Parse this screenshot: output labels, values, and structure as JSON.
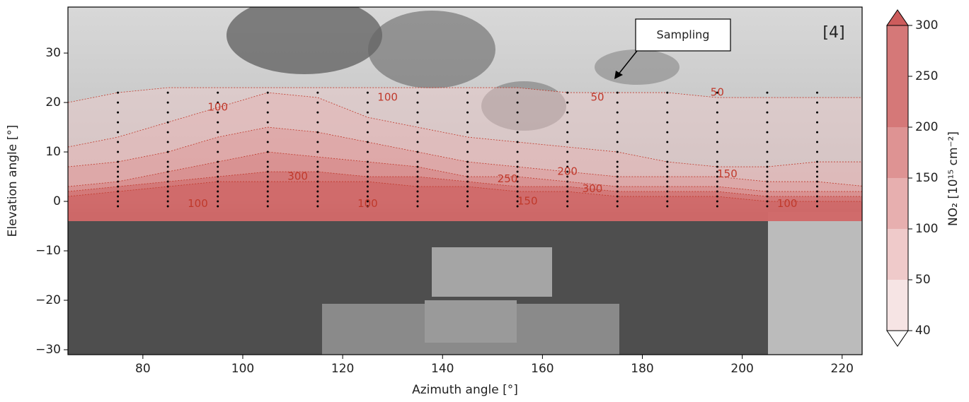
{
  "chart_data": {
    "type": "contour",
    "xlabel": "Azimuth angle [°]",
    "ylabel": "Elevation angle [°]",
    "panel_label": "[4]",
    "annotation": "Sampling",
    "xlim": [
      65,
      224
    ],
    "ylim": [
      -31,
      39.3
    ],
    "xticks": [
      80,
      100,
      120,
      140,
      160,
      180,
      200,
      220
    ],
    "yticks": [
      {
        "value": -30,
        "label": "−30"
      },
      {
        "value": -20,
        "label": "−20"
      },
      {
        "value": -10,
        "label": "−10"
      },
      0,
      10,
      20,
      30
    ],
    "colorbar": {
      "label": "NO₂ [10¹⁵ cm⁻²]",
      "levels": [
        40,
        50,
        100,
        150,
        200,
        250,
        300
      ],
      "colors": [
        "#ffffff",
        "#f6e4e4",
        "#efcaca",
        "#e7afaf",
        "#de9393",
        "#d57878",
        "#cc5c5c"
      ],
      "extend": "both"
    },
    "contour_azimuths": [
      65,
      75,
      85,
      95,
      105,
      115,
      125,
      135,
      145,
      155,
      165,
      175,
      185,
      195,
      205,
      215,
      225
    ],
    "contour_floor": -4,
    "contours": [
      {
        "level": 50,
        "boundary": [
          20,
          22,
          23,
          23,
          23,
          23,
          23,
          23,
          23,
          23,
          22,
          22,
          22,
          21,
          21,
          21,
          21
        ]
      },
      {
        "level": 100,
        "boundary": [
          11,
          13,
          16,
          19,
          22,
          21,
          17,
          15,
          13,
          12,
          11,
          10,
          8,
          7,
          7,
          8,
          8
        ]
      },
      {
        "level": 150,
        "boundary": [
          7,
          8,
          10,
          13,
          15,
          14,
          12,
          10,
          8,
          7,
          6,
          5,
          5,
          5,
          4,
          4,
          3
        ]
      },
      {
        "level": 200,
        "boundary": [
          3,
          4,
          6,
          8,
          10,
          9,
          8,
          7,
          5,
          5,
          4,
          3,
          3,
          3,
          2,
          2,
          2
        ]
      },
      {
        "level": 250,
        "boundary": [
          2,
          3,
          4,
          5,
          6,
          6,
          5,
          5,
          4,
          3,
          3,
          2,
          2,
          2,
          1,
          1,
          1
        ]
      },
      {
        "level": 300,
        "boundary": [
          1,
          2,
          3,
          4,
          4,
          4,
          4,
          3,
          3,
          2,
          2,
          1,
          1,
          1,
          0,
          0,
          0
        ]
      }
    ],
    "contour_labels": [
      {
        "value": 100,
        "azimuth": 95,
        "elevation": 19
      },
      {
        "value": 100,
        "azimuth": 129,
        "elevation": 21
      },
      {
        "value": 50,
        "azimuth": 171,
        "elevation": 21
      },
      {
        "value": 50,
        "azimuth": 195,
        "elevation": 22
      },
      {
        "value": 300,
        "azimuth": 111,
        "elevation": 5
      },
      {
        "value": 250,
        "azimuth": 153,
        "elevation": 4.5
      },
      {
        "value": 200,
        "azimuth": 165,
        "elevation": 6
      },
      {
        "value": 150,
        "azimuth": 197,
        "elevation": 5.5
      },
      {
        "value": 300,
        "azimuth": 170,
        "elevation": 2.5
      },
      {
        "value": 100,
        "azimuth": 91,
        "elevation": -0.5
      },
      {
        "value": 100,
        "azimuth": 125,
        "elevation": -0.5
      },
      {
        "value": 150,
        "azimuth": 157,
        "elevation": 0
      },
      {
        "value": 100,
        "azimuth": 209,
        "elevation": -0.5
      }
    ],
    "sampling_azimuths": [
      75,
      85,
      95,
      105,
      115,
      125,
      135,
      145,
      155,
      165,
      175,
      185,
      195,
      205,
      215
    ],
    "sampling_elevations": [
      -1,
      0,
      1,
      2,
      3,
      4,
      5,
      6,
      7,
      8,
      10,
      12,
      14,
      16,
      18,
      20,
      22
    ]
  }
}
